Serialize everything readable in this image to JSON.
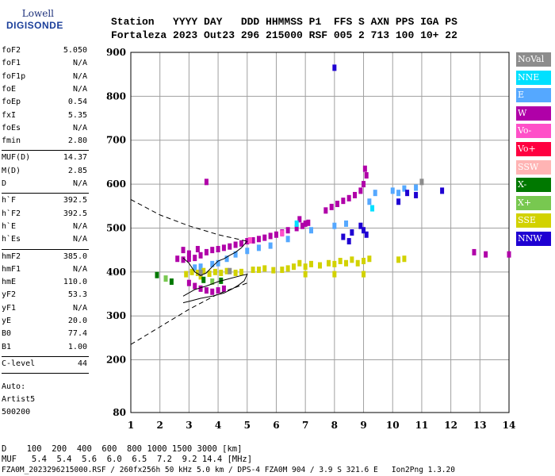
{
  "logo": {
    "top": "Lowell",
    "bottom": "DIGISONDE"
  },
  "header": {
    "line1": "Station   YYYY DAY   DDD HHMMSS P1  FFS S AXN PPS IGA PS",
    "line2": "Fortaleza 2023 Out23 296 215000 RSF 005 2 713 100 10+ 22"
  },
  "params_top": [
    {
      "name": "foF2",
      "value": "5.050"
    },
    {
      "name": "foF1",
      "value": "N/A"
    },
    {
      "name": "foF1p",
      "value": "N/A"
    },
    {
      "name": "foE",
      "value": "N/A"
    },
    {
      "name": "foEp",
      "value": "0.54"
    },
    {
      "name": "fxI",
      "value": "5.35"
    },
    {
      "name": "foEs",
      "value": "N/A"
    },
    {
      "name": "fmin",
      "value": "2.80"
    }
  ],
  "params_muf": [
    {
      "name": "MUF(D)",
      "value": "14.37"
    },
    {
      "name": "M(D)",
      "value": "2.85"
    },
    {
      "name": "D",
      "value": "N/A"
    }
  ],
  "params_h": [
    {
      "name": "h`F",
      "value": "392.5"
    },
    {
      "name": "h`F2",
      "value": "392.5"
    },
    {
      "name": "h`E",
      "value": "N/A"
    },
    {
      "name": "h`Es",
      "value": "N/A"
    }
  ],
  "params_prof": [
    {
      "name": "hmF2",
      "value": "385.0"
    },
    {
      "name": "hmF1",
      "value": "N/A"
    },
    {
      "name": "hmE",
      "value": "110.0"
    },
    {
      "name": "yF2",
      "value": "53.3"
    },
    {
      "name": "yF1",
      "value": "N/A"
    },
    {
      "name": "yE",
      "value": "20.0"
    },
    {
      "name": "B0",
      "value": "77.4"
    },
    {
      "name": "B1",
      "value": "1.00"
    }
  ],
  "params_c": [
    {
      "name": "C-level",
      "value": "44"
    }
  ],
  "auto": [
    "Auto:",
    "Artist5",
    "500200"
  ],
  "legend": [
    {
      "label": "NoVal",
      "color": "#8c8c8c"
    },
    {
      "label": "NNE",
      "color": "#00e0ff"
    },
    {
      "label": "E",
      "color": "#55a8ff"
    },
    {
      "label": "W",
      "color": "#b000a8"
    },
    {
      "label": "Vo-",
      "color": "#ff50c8"
    },
    {
      "label": "Vo+",
      "color": "#ff0040"
    },
    {
      "label": "SSW",
      "color": "#ffb4b4"
    },
    {
      "label": "X-",
      "color": "#007800"
    },
    {
      "label": "X+",
      "color": "#78c850"
    },
    {
      "label": "SSE",
      "color": "#d2d200"
    },
    {
      "label": "NNW",
      "color": "#1e00d2"
    }
  ],
  "footer": {
    "d_line": "D    100  200  400  600  800 1000 1500 3000 [km]",
    "muf_line": "MUF   5.4  5.4  5.6  6.0  6.5  7.2  9.2 14.4 [MHz]",
    "file_line": "FZA0M_2023296215000.RSF / 260fx256h 50 kHz 5.0 km / DPS-4 FZA0M 904 / 3.9 S 321.6 E   Ion2Png 1.3.20"
  },
  "chart_data": {
    "type": "scatter",
    "title": "",
    "xlabel": "",
    "ylabel": "",
    "xlim": [
      1,
      14
    ],
    "ylim": [
      80,
      900
    ],
    "xticks": [
      1,
      2,
      3,
      4,
      5,
      6,
      7,
      8,
      9,
      10,
      11,
      12,
      13,
      14
    ],
    "yticks": [
      80,
      200,
      300,
      400,
      500,
      600,
      700,
      800,
      900
    ],
    "grid": true,
    "series": [
      {
        "name": "W",
        "color": "#b000a8",
        "points": [
          [
            2.6,
            430
          ],
          [
            2.8,
            428
          ],
          [
            3.0,
            430
          ],
          [
            3.2,
            432
          ],
          [
            3.4,
            438
          ],
          [
            3.6,
            445
          ],
          [
            3.8,
            450
          ],
          [
            4.0,
            452
          ],
          [
            4.2,
            455
          ],
          [
            4.4,
            458
          ],
          [
            4.6,
            462
          ],
          [
            4.8,
            465
          ],
          [
            5.0,
            470
          ],
          [
            5.2,
            472
          ],
          [
            5.4,
            475
          ],
          [
            5.6,
            478
          ],
          [
            5.8,
            482
          ],
          [
            6.0,
            485
          ],
          [
            6.2,
            490
          ],
          [
            6.4,
            495
          ],
          [
            6.7,
            500
          ],
          [
            6.9,
            505
          ],
          [
            7.0,
            510
          ],
          [
            6.8,
            520
          ],
          [
            7.1,
            512
          ],
          [
            7.7,
            540
          ],
          [
            7.9,
            548
          ],
          [
            8.1,
            555
          ],
          [
            8.3,
            562
          ],
          [
            8.5,
            568
          ],
          [
            8.7,
            575
          ],
          [
            8.9,
            585
          ],
          [
            9.0,
            600
          ],
          [
            9.1,
            620
          ],
          [
            9.05,
            635
          ],
          [
            3.0,
            375
          ],
          [
            3.2,
            368
          ],
          [
            3.4,
            362
          ],
          [
            3.6,
            358
          ],
          [
            3.8,
            355
          ],
          [
            4.0,
            358
          ],
          [
            4.2,
            362
          ],
          [
            2.8,
            450
          ],
          [
            3.0,
            442
          ],
          [
            3.3,
            452
          ],
          [
            13.2,
            440
          ],
          [
            14.0,
            440
          ],
          [
            12.8,
            445
          ],
          [
            3.6,
            605
          ]
        ]
      },
      {
        "name": "E",
        "color": "#55a8ff",
        "points": [
          [
            3.2,
            410
          ],
          [
            3.4,
            412
          ],
          [
            3.8,
            418
          ],
          [
            4.0,
            420
          ],
          [
            4.3,
            430
          ],
          [
            4.6,
            440
          ],
          [
            5.0,
            448
          ],
          [
            5.4,
            455
          ],
          [
            5.8,
            460
          ],
          [
            6.4,
            475
          ],
          [
            7.2,
            495
          ],
          [
            8.0,
            505
          ],
          [
            8.4,
            510
          ],
          [
            9.2,
            560
          ],
          [
            9.4,
            580
          ],
          [
            10.0,
            585
          ],
          [
            10.4,
            590
          ],
          [
            10.2,
            580
          ],
          [
            10.8,
            592
          ]
        ]
      },
      {
        "name": "NNW",
        "color": "#1e00d2",
        "points": [
          [
            8.3,
            480
          ],
          [
            8.5,
            470
          ],
          [
            8.6,
            490
          ],
          [
            8.9,
            505
          ],
          [
            9.0,
            495
          ],
          [
            9.1,
            485
          ],
          [
            10.2,
            560
          ],
          [
            10.5,
            580
          ],
          [
            10.8,
            575
          ],
          [
            8.0,
            865
          ],
          [
            11.7,
            585
          ]
        ]
      },
      {
        "name": "SSE",
        "color": "#d2d200",
        "points": [
          [
            2.9,
            395
          ],
          [
            3.1,
            400
          ],
          [
            3.3,
            398
          ],
          [
            3.5,
            402
          ],
          [
            3.7,
            396
          ],
          [
            3.9,
            400
          ],
          [
            4.1,
            398
          ],
          [
            4.3,
            402
          ],
          [
            4.6,
            398
          ],
          [
            4.8,
            400
          ],
          [
            5.2,
            405
          ],
          [
            5.4,
            405
          ],
          [
            5.6,
            408
          ],
          [
            5.9,
            404
          ],
          [
            6.2,
            405
          ],
          [
            6.4,
            408
          ],
          [
            6.6,
            412
          ],
          [
            6.8,
            420
          ],
          [
            7.0,
            412
          ],
          [
            7.2,
            418
          ],
          [
            7.5,
            415
          ],
          [
            7.8,
            420
          ],
          [
            8.0,
            418
          ],
          [
            8.2,
            425
          ],
          [
            8.4,
            420
          ],
          [
            8.6,
            428
          ],
          [
            8.8,
            420
          ],
          [
            9.0,
            425
          ],
          [
            9.2,
            430
          ],
          [
            10.2,
            428
          ],
          [
            10.4,
            430
          ],
          [
            7.0,
            395
          ],
          [
            8.0,
            395
          ],
          [
            9.0,
            395
          ],
          [
            3.4,
            390
          ]
        ]
      },
      {
        "name": "X-",
        "color": "#007800",
        "points": [
          [
            1.9,
            393
          ],
          [
            2.4,
            378
          ],
          [
            3.5,
            382
          ],
          [
            4.1,
            380
          ]
        ]
      },
      {
        "name": "X+",
        "color": "#78c850",
        "points": [
          [
            2.2,
            385
          ],
          [
            3.8,
            378
          ]
        ]
      },
      {
        "name": "NNE",
        "color": "#00e0ff",
        "points": [
          [
            6.7,
            510
          ],
          [
            9.3,
            545
          ]
        ]
      },
      {
        "name": "NoVal",
        "color": "#8c8c8c",
        "points": [
          [
            3.4,
            398
          ],
          [
            4.4,
            402
          ],
          [
            11.0,
            605
          ]
        ]
      },
      {
        "name": "Vo-",
        "color": "#ff50c8",
        "points": [
          [
            5.1,
            472
          ],
          [
            6.2,
            488
          ]
        ]
      }
    ]
  }
}
